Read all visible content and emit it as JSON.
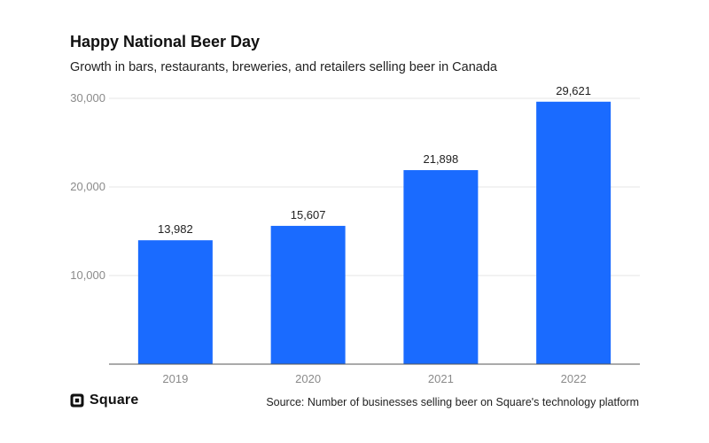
{
  "header": {
    "title": "Happy National Beer Day",
    "subtitle": "Growth in bars, restaurants, breweries, and retailers selling beer in Canada"
  },
  "footer": {
    "brand": "Square",
    "brand_icon": "square-logo-icon",
    "source": "Source: Number of businesses selling beer on Square's technology platform"
  },
  "colors": {
    "bar": "#1a6bff",
    "grid": "#e6e6e6",
    "axis": "#555555",
    "tick_label": "#8a8a8a",
    "value_label": "#222222"
  },
  "chart_data": {
    "type": "bar",
    "title": "Happy National Beer Day",
    "subtitle": "Growth in bars, restaurants, breweries, and retailers selling beer in Canada",
    "categories": [
      "2019",
      "2020",
      "2021",
      "2022"
    ],
    "values": [
      13982,
      15607,
      21898,
      29621
    ],
    "value_labels": [
      "13,982",
      "15,607",
      "21,898",
      "29,621"
    ],
    "ylim": [
      0,
      30000
    ],
    "yticks": [
      10000,
      20000,
      30000
    ],
    "ytick_labels": [
      "10,000",
      "20,000",
      "30,000"
    ],
    "grid": true,
    "legend": "none"
  }
}
